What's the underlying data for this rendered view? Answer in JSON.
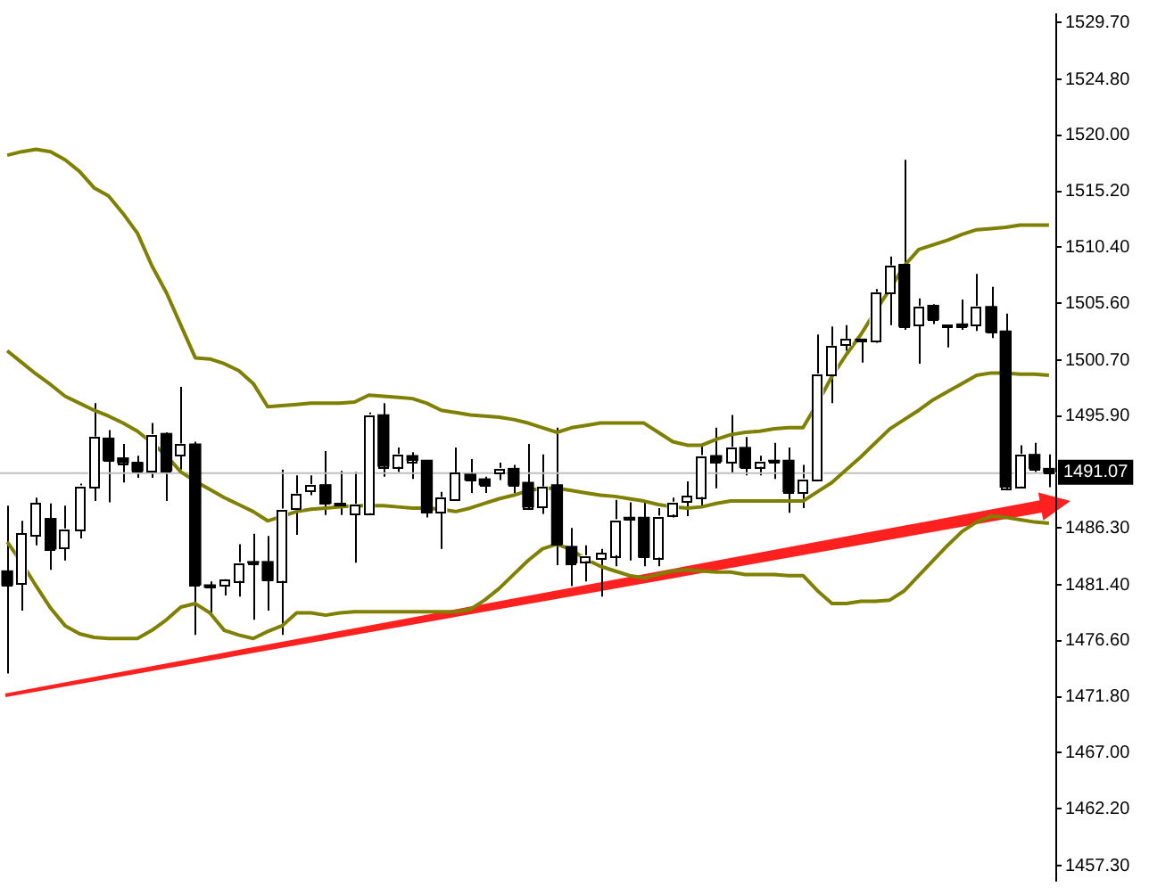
{
  "chart_data": {
    "type": "candlestick",
    "categories": [
      null,
      null,
      null,
      null,
      null,
      null,
      null,
      null,
      null,
      null,
      null,
      null,
      null,
      null,
      null,
      null,
      null,
      null,
      null,
      null,
      null,
      null,
      null,
      null,
      null,
      null,
      null,
      null,
      null,
      null,
      null,
      null,
      null,
      null,
      null,
      null,
      null,
      null,
      null,
      null,
      null,
      null,
      null,
      null,
      null,
      null,
      null,
      null,
      null,
      null,
      null,
      null,
      null,
      null,
      null,
      null,
      null,
      null,
      null,
      null,
      null,
      null,
      null,
      null,
      null,
      null,
      null,
      null,
      null,
      null,
      null,
      null,
      null
    ],
    "ohlc": [
      [
        1482.6,
        1488.2,
        1473.8,
        1481.4
      ],
      [
        1481.5,
        1486.9,
        1479.2,
        1485.8
      ],
      [
        1485.6,
        1488.9,
        1484.8,
        1488.4
      ],
      [
        1487.1,
        1488.4,
        1482.7,
        1484.5
      ],
      [
        1484.6,
        1488.2,
        1483.5,
        1486.2
      ],
      [
        1486.2,
        1490.1,
        1485.4,
        1489.9
      ],
      [
        1489.8,
        1497.0,
        1488.6,
        1494.1
      ],
      [
        1494.0,
        1494.7,
        1488.5,
        1492.1
      ],
      [
        1492.3,
        1493.5,
        1490.2,
        1491.9
      ],
      [
        1491.9,
        1492.5,
        1490.6,
        1491.2
      ],
      [
        1491.2,
        1495.3,
        1490.6,
        1494.3
      ],
      [
        1494.4,
        1494.5,
        1488.6,
        1491.2
      ],
      [
        1492.6,
        1498.4,
        1491.3,
        1493.5
      ],
      [
        1493.5,
        1493.7,
        1477.1,
        1481.4
      ],
      [
        1481.4,
        1481.7,
        1479.0,
        1481.2
      ],
      [
        1481.3,
        1481.9,
        1480.5,
        1481.8
      ],
      [
        1481.8,
        1484.9,
        1480.4,
        1483.3
      ],
      [
        1483.4,
        1485.8,
        1478.4,
        1483.3
      ],
      [
        1483.4,
        1485.6,
        1479.2,
        1481.8
      ],
      [
        1481.8,
        1491.3,
        1477.1,
        1487.9
      ],
      [
        1487.9,
        1490.8,
        1485.7,
        1489.2
      ],
      [
        1489.5,
        1490.8,
        1489.1,
        1490.0
      ],
      [
        1490.0,
        1492.9,
        1487.4,
        1488.4
      ],
      [
        1488.4,
        1491.2,
        1487.4,
        1488.2
      ],
      [
        1487.5,
        1491.1,
        1483.3,
        1488.3
      ],
      [
        1487.6,
        1496.2,
        1487.4,
        1496.0
      ],
      [
        1496.0,
        1497.0,
        1490.7,
        1491.6
      ],
      [
        1491.6,
        1493.2,
        1491.1,
        1492.6
      ],
      [
        1492.5,
        1492.8,
        1490.5,
        1492.1
      ],
      [
        1492.1,
        1492.1,
        1487.2,
        1487.6
      ],
      [
        1487.7,
        1489.4,
        1484.5,
        1488.9
      ],
      [
        1488.7,
        1493.2,
        1488.6,
        1491.0
      ],
      [
        1490.9,
        1492.2,
        1489.3,
        1490.4
      ],
      [
        1490.5,
        1490.7,
        1489.3,
        1490.0
      ],
      [
        1491.1,
        1491.9,
        1490.4,
        1491.4
      ],
      [
        1491.4,
        1491.7,
        1489.3,
        1490.0
      ],
      [
        1490.2,
        1493.5,
        1488.0,
        1488.1
      ],
      [
        1488.1,
        1492.6,
        1487.5,
        1489.8
      ],
      [
        1490.0,
        1494.9,
        1483.1,
        1484.9
      ],
      [
        1484.7,
        1486.3,
        1481.3,
        1483.3
      ],
      [
        1483.5,
        1484.8,
        1481.7,
        1483.9
      ],
      [
        1483.7,
        1484.5,
        1480.4,
        1484.1
      ],
      [
        1484.0,
        1488.7,
        1483.0,
        1487.0
      ],
      [
        1487.2,
        1488.5,
        1483.5,
        1487.0
      ],
      [
        1487.2,
        1488.5,
        1483.0,
        1483.8
      ],
      [
        1483.8,
        1488.0,
        1483.0,
        1487.3
      ],
      [
        1487.5,
        1488.9,
        1487.2,
        1488.5
      ],
      [
        1488.6,
        1490.3,
        1487.3,
        1489.0
      ],
      [
        1489.0,
        1493.4,
        1488.1,
        1492.5
      ],
      [
        1492.5,
        1494.9,
        1489.7,
        1492.0
      ],
      [
        1492.0,
        1496.0,
        1491.0,
        1493.2
      ],
      [
        1493.2,
        1494.1,
        1490.8,
        1491.5
      ],
      [
        1491.6,
        1492.5,
        1490.8,
        1492.0
      ],
      [
        1492.1,
        1493.6,
        1490.5,
        1492.0
      ],
      [
        1492.1,
        1493.2,
        1487.6,
        1489.4
      ],
      [
        1489.4,
        1491.7,
        1488.0,
        1490.5
      ],
      [
        1490.5,
        1502.9,
        1490.4,
        1499.5
      ],
      [
        1499.5,
        1503.6,
        1497.0,
        1501.9
      ],
      [
        1502.0,
        1503.7,
        1501.5,
        1502.5
      ],
      [
        1502.5,
        1502.5,
        1500.5,
        1502.4
      ],
      [
        1502.4,
        1506.8,
        1502.2,
        1506.5
      ],
      [
        1506.5,
        1509.6,
        1503.7,
        1508.8
      ],
      [
        1508.9,
        1517.9,
        1503.3,
        1503.6
      ],
      [
        1503.7,
        1506.0,
        1500.4,
        1505.3
      ],
      [
        1505.4,
        1505.5,
        1503.8,
        1504.2
      ],
      [
        1503.6,
        1503.8,
        1501.8,
        1503.8
      ],
      [
        1503.8,
        1505.9,
        1503.3,
        1503.6
      ],
      [
        1503.8,
        1508.1,
        1503.2,
        1505.3
      ],
      [
        1505.3,
        1507.0,
        1502.6,
        1503.1
      ],
      [
        1503.2,
        1504.7,
        1489.6,
        1489.8
      ],
      [
        1489.9,
        1493.4,
        1489.8,
        1492.6
      ],
      [
        1492.6,
        1493.6,
        1491.1,
        1491.4
      ],
      [
        1491.4,
        1492.6,
        1489.8,
        1491.07
      ]
    ],
    "series": [
      {
        "type": "line",
        "color": "#808000",
        "values": [
          1518.3,
          1518.6,
          1518.8,
          1518.6,
          1517.9,
          1516.9,
          1515.5,
          1514.8,
          1513.3,
          1511.6,
          1508.8,
          1506.5,
          1503.7,
          1500.9,
          1500.8,
          1500.4,
          1499.8,
          1498.7,
          1496.7,
          1496.8,
          1496.9,
          1497.0,
          1497.0,
          1497.0,
          1497.1,
          1497.7,
          1497.6,
          1497.5,
          1497.4,
          1497.0,
          1496.4,
          1496.2,
          1496.0,
          1495.9,
          1495.8,
          1495.6,
          1495.3,
          1494.9,
          1494.5,
          1494.9,
          1495.1,
          1495.3,
          1495.3,
          1495.3,
          1495.3,
          1494.5,
          1493.7,
          1493.4,
          1493.4,
          1493.9,
          1494.3,
          1494.5,
          1494.6,
          1494.8,
          1494.9,
          1494.9,
          1497.0,
          1499.3,
          1501.2,
          1502.9,
          1504.9,
          1506.8,
          1508.8,
          1510.2,
          1510.6,
          1511.0,
          1511.5,
          1511.9,
          1512.0,
          1512.1,
          1512.3,
          1512.3,
          1512.3
        ]
      },
      {
        "type": "line",
        "color": "#808000",
        "values": [
          1501.5,
          1500.5,
          1499.5,
          1498.6,
          1497.6,
          1497.0,
          1496.4,
          1495.9,
          1495.3,
          1494.6,
          1493.6,
          1492.5,
          1491.1,
          1490.3,
          1489.6,
          1488.9,
          1488.3,
          1487.7,
          1486.9,
          1487.3,
          1487.7,
          1487.9,
          1488.0,
          1488.1,
          1488.2,
          1488.2,
          1488.2,
          1488.1,
          1488.0,
          1488.0,
          1487.9,
          1487.7,
          1488.0,
          1488.4,
          1488.8,
          1489.1,
          1489.5,
          1489.7,
          1489.7,
          1489.5,
          1489.3,
          1489.1,
          1489.0,
          1488.8,
          1488.6,
          1488.3,
          1488.1,
          1488.0,
          1488.1,
          1488.4,
          1488.6,
          1488.6,
          1488.6,
          1488.6,
          1488.6,
          1488.6,
          1489.4,
          1490.2,
          1491.3,
          1492.4,
          1493.6,
          1494.8,
          1495.6,
          1496.4,
          1497.3,
          1498.0,
          1498.7,
          1499.4,
          1499.6,
          1499.6,
          1499.5,
          1499.5,
          1499.4
        ]
      },
      {
        "type": "line",
        "color": "#808000",
        "values": [
          1485.1,
          1483.3,
          1481.3,
          1479.4,
          1477.9,
          1477.2,
          1476.9,
          1476.8,
          1476.8,
          1476.8,
          1477.5,
          1478.4,
          1479.5,
          1479.8,
          1479.0,
          1477.5,
          1477.1,
          1476.8,
          1477.4,
          1477.9,
          1479.0,
          1479.0,
          1478.8,
          1479.0,
          1479.1,
          1479.1,
          1479.1,
          1479.1,
          1479.1,
          1479.1,
          1479.1,
          1479.1,
          1479.3,
          1480.1,
          1481.1,
          1482.3,
          1483.5,
          1484.5,
          1484.9,
          1484.4,
          1483.6,
          1483.0,
          1482.6,
          1482.2,
          1482.0,
          1482.3,
          1482.6,
          1482.7,
          1482.6,
          1482.5,
          1482.5,
          1482.3,
          1482.3,
          1482.3,
          1482.2,
          1482.2,
          1480.9,
          1479.8,
          1479.8,
          1480.0,
          1480.0,
          1480.1,
          1480.9,
          1482.2,
          1483.5,
          1484.8,
          1486.0,
          1486.8,
          1487.3,
          1487.2,
          1487.0,
          1486.8,
          1486.7
        ]
      }
    ],
    "ylim": [
      1456.0,
      1530.4
    ],
    "yticks": [
      {
        "value": 1457.3,
        "label": "1457.30"
      },
      {
        "value": 1462.2,
        "label": "1462.20"
      },
      {
        "value": 1467.0,
        "label": "1467.00"
      },
      {
        "value": 1471.8,
        "label": "1471.80"
      },
      {
        "value": 1476.6,
        "label": "1476.60"
      },
      {
        "value": 1481.4,
        "label": "1481.40"
      },
      {
        "value": 1486.3,
        "label": "1486.30"
      },
      {
        "value": 1495.9,
        "label": "1495.90"
      },
      {
        "value": 1500.7,
        "label": "1500.70"
      },
      {
        "value": 1505.6,
        "label": "1505.60"
      },
      {
        "value": 1510.4,
        "label": "1510.40"
      },
      {
        "value": 1515.2,
        "label": "1515.20"
      },
      {
        "value": 1520.0,
        "label": "1520.00"
      },
      {
        "value": 1524.8,
        "label": "1524.80"
      },
      {
        "value": 1529.7,
        "label": "1529.70"
      }
    ],
    "ref_lines": [
      {
        "axis": "y",
        "value": 1491.07,
        "label": "1491.07",
        "color": "#c0c0c0"
      }
    ],
    "tick_labels": "y",
    "grid": false,
    "legend": false,
    "marker": "none"
  }
}
